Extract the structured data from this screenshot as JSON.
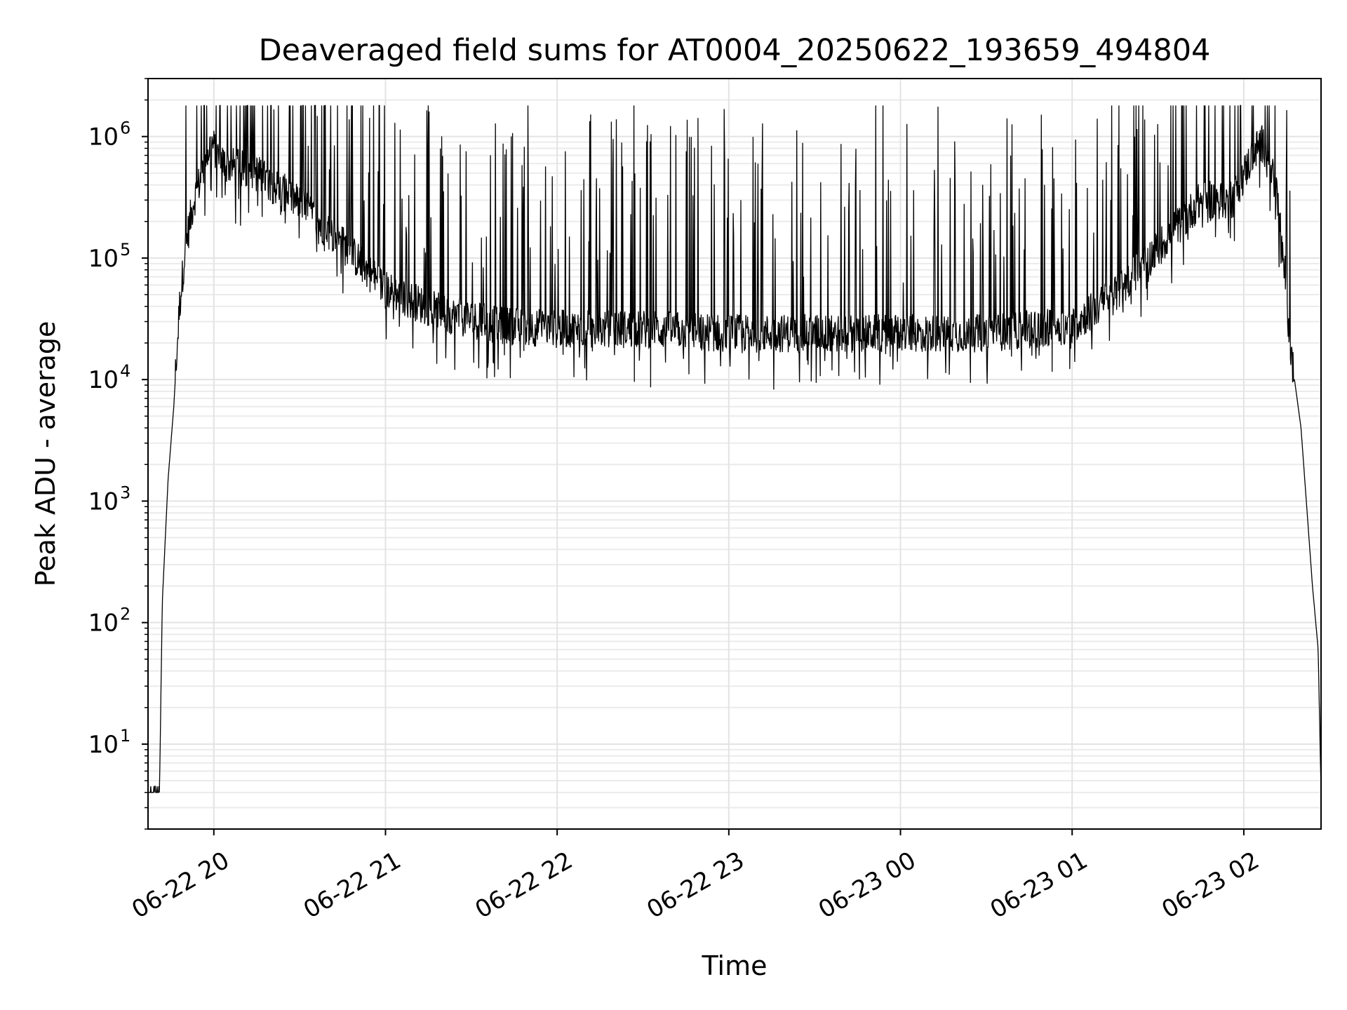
{
  "chart_data": {
    "type": "line",
    "title": "Deaveraged field sums for AT0004_20250622_193659_494804",
    "xlabel": "Time",
    "ylabel": "Peak ADU - average",
    "yscale": "log",
    "grid": true,
    "grid_minor": true,
    "line_color": "#000000",
    "xlim": [
      "2025-06-22 19:37",
      "2025-06-23 02:27"
    ],
    "ylim": [
      2,
      3000000
    ],
    "x_ticks": [
      {
        "value": "2025-06-22 20:00",
        "label": "06-22 20"
      },
      {
        "value": "2025-06-22 21:00",
        "label": "06-22 21"
      },
      {
        "value": "2025-06-22 22:00",
        "label": "06-22 22"
      },
      {
        "value": "2025-06-22 23:00",
        "label": "06-22 23"
      },
      {
        "value": "2025-06-23 00:00",
        "label": "06-23 00"
      },
      {
        "value": "2025-06-23 01:00",
        "label": "06-23 01"
      },
      {
        "value": "2025-06-23 02:00",
        "label": "06-23 02"
      }
    ],
    "y_ticks": [
      {
        "value": 10,
        "base": "10",
        "exp": "1"
      },
      {
        "value": 100,
        "base": "10",
        "exp": "2"
      },
      {
        "value": 1000,
        "base": "10",
        "exp": "3"
      },
      {
        "value": 10000,
        "base": "10",
        "exp": "4"
      },
      {
        "value": 100000,
        "base": "10",
        "exp": "5"
      },
      {
        "value": 1000000,
        "base": "10",
        "exp": "6"
      }
    ],
    "series": [
      {
        "envelope_points": [
          {
            "t": "2025-06-22 19:37",
            "y": 4
          },
          {
            "t": "2025-06-22 19:41",
            "y": 4
          },
          {
            "t": "2025-06-22 19:42",
            "y": 150
          },
          {
            "t": "2025-06-22 19:44",
            "y": 1500
          },
          {
            "t": "2025-06-22 19:46",
            "y": 6000
          },
          {
            "t": "2025-06-22 19:48",
            "y": 40000
          },
          {
            "t": "2025-06-22 19:50",
            "y": 120000
          },
          {
            "t": "2025-06-22 19:53",
            "y": 300000
          },
          {
            "t": "2025-06-22 19:56",
            "y": 500000
          },
          {
            "t": "2025-06-22 19:59",
            "y": 900000
          },
          {
            "t": "2025-06-22 20:03",
            "y": 600000
          },
          {
            "t": "2025-06-22 20:15",
            "y": 500000
          },
          {
            "t": "2025-06-22 20:30",
            "y": 280000
          },
          {
            "t": "2025-06-22 20:45",
            "y": 130000
          },
          {
            "t": "2025-06-22 21:00",
            "y": 55000
          },
          {
            "t": "2025-06-22 21:20",
            "y": 35000
          },
          {
            "t": "2025-06-22 21:40",
            "y": 28000
          },
          {
            "t": "2025-06-22 22:00",
            "y": 26000
          },
          {
            "t": "2025-06-22 22:30",
            "y": 26000
          },
          {
            "t": "2025-06-22 23:00",
            "y": 24000
          },
          {
            "t": "2025-06-22 23:30",
            "y": 24000
          },
          {
            "t": "2025-06-23 00:00",
            "y": 24000
          },
          {
            "t": "2025-06-23 00:30",
            "y": 24000
          },
          {
            "t": "2025-06-23 01:00",
            "y": 28000
          },
          {
            "t": "2025-06-23 01:15",
            "y": 50000
          },
          {
            "t": "2025-06-23 01:30",
            "y": 120000
          },
          {
            "t": "2025-06-23 01:45",
            "y": 300000
          },
          {
            "t": "2025-06-23 01:56",
            "y": 300000
          },
          {
            "t": "2025-06-23 02:03",
            "y": 700000
          },
          {
            "t": "2025-06-23 02:06",
            "y": 900000
          },
          {
            "t": "2025-06-23 02:10",
            "y": 600000
          },
          {
            "t": "2025-06-23 02:14",
            "y": 100000
          },
          {
            "t": "2025-06-23 02:16",
            "y": 20000
          },
          {
            "t": "2025-06-23 02:20",
            "y": 4000
          },
          {
            "t": "2025-06-23 02:24",
            "y": 200
          },
          {
            "t": "2025-06-23 02:26",
            "y": 60
          },
          {
            "t": "2025-06-23 02:27",
            "y": 4
          }
        ]
      }
    ]
  }
}
